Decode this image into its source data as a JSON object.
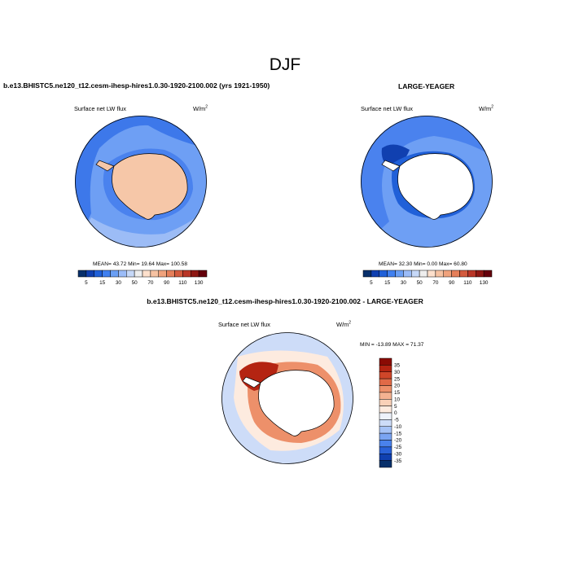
{
  "figure": {
    "title": "DJF",
    "panel_a_header": "b.e13.BHISTC5.ne120_t12.cesm-ihesp-hires1.0.30-1920-2100.002 (yrs 1921-1950)",
    "panel_b_header": "LARGE-YEAGER",
    "panel_c_header": "b.e13.BHISTC5.ne120_t12.cesm-ihesp-hires1.0.30-1920-2100.002 - LARGE-YEAGER"
  },
  "colors": {
    "scale_a": [
      "#08306b",
      "#1040b0",
      "#2060d8",
      "#4080f0",
      "#6a9ff5",
      "#9bbcf8",
      "#c6d8f8",
      "#eeeeee",
      "#fde0cc",
      "#f6c2a2",
      "#f0a27c",
      "#e57f5a",
      "#d35a3d",
      "#b93526",
      "#8e1713",
      "#65000b"
    ],
    "scale_diff": [
      "#08306b",
      "#1040b0",
      "#2a62d8",
      "#4a82ec",
      "#7aa4f2",
      "#a5c2f6",
      "#cddcf8",
      "#eef2fb",
      "#fdebdf",
      "#f9d1b8",
      "#f4b291",
      "#ed906a",
      "#e06a47",
      "#cf4629",
      "#b42412",
      "#8a0b04"
    ]
  },
  "chart_data": [
    {
      "type": "map",
      "panel": "left",
      "title": "Surface net LW flux",
      "units_base": "W/m",
      "units_exp": "2",
      "stats": {
        "mean": "43.72",
        "min": "19.64",
        "max": "100.58"
      },
      "stats_text": "MEAN=  43.72  Min=  19.64  Max= 100.58",
      "colorbar_orientation": "horizontal",
      "colorbar_tick_labels": [
        "5",
        "15",
        "30",
        "50",
        "70",
        "90",
        "110",
        "130"
      ]
    },
    {
      "type": "map",
      "panel": "right",
      "title": "Surface net LW flux",
      "units_base": "W/m",
      "units_exp": "2",
      "stats": {
        "mean": "32.30",
        "min": "0.00",
        "max": "60.80"
      },
      "stats_text": "MEAN=  32.30  Min=   0.00  Max=  60.80",
      "colorbar_orientation": "horizontal",
      "colorbar_tick_labels": [
        "5",
        "15",
        "30",
        "50",
        "70",
        "90",
        "110",
        "130"
      ]
    },
    {
      "type": "map",
      "panel": "difference",
      "title": "Surface net LW flux",
      "units_base": "W/m",
      "units_exp": "2",
      "stats": {
        "min": "-13.89",
        "max": "71.37"
      },
      "stats_text": "MIN = -13.89 MAX =  71.37",
      "colorbar_orientation": "vertical",
      "colorbar_levels": [
        "35",
        "30",
        "25",
        "20",
        "15",
        "10",
        "5",
        "0",
        "-5",
        "-10",
        "-15",
        "-20",
        "-25",
        "-30",
        "-35"
      ]
    }
  ]
}
